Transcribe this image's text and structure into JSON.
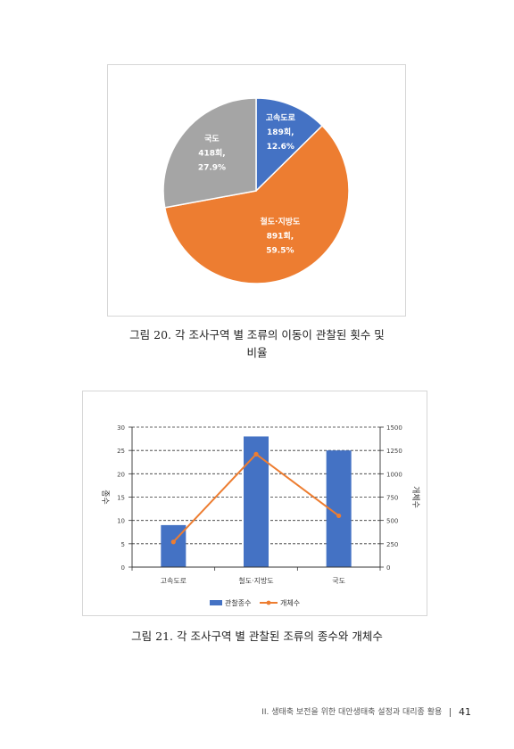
{
  "figure20": {
    "caption_line1": "그림 20. 각 조사구역 별 조류의 이동이 관찰된 횟수 및",
    "caption_line2": "비율"
  },
  "figure21": {
    "caption": "그림 21. 각 조사구역 별 관찰된 조류의 종수와 개체수"
  },
  "footer": {
    "text": "II. 생태축 보전을 위한 대안생태축 설정과 대리종 활용",
    "page": "41"
  },
  "chart_data": [
    {
      "type": "pie",
      "labels": [
        "고속도로",
        "철도·지방도",
        "국도"
      ],
      "values": [
        189,
        891,
        418
      ],
      "value_labels": [
        "189회,",
        "891회,",
        "418회,"
      ],
      "percent_labels": [
        "12.6%",
        "59.5%",
        "27.9%"
      ],
      "colors": [
        "#4472c4",
        "#ed7d31",
        "#a5a5a5"
      ]
    },
    {
      "type": "bar",
      "categories": [
        "고속도로",
        "철도·지방도",
        "국도"
      ],
      "series": [
        {
          "name": "관찰종수",
          "type": "bar",
          "axis": "left",
          "values": [
            9,
            28,
            25
          ],
          "color": "#4472c4"
        },
        {
          "name": "개체수",
          "type": "line",
          "axis": "right",
          "values": [
            270,
            1210,
            550
          ],
          "color": "#ed7d31"
        }
      ],
      "ylabel": "종수",
      "y2label": "개체수",
      "ylim": [
        0,
        30
      ],
      "y2lim": [
        0,
        1500
      ],
      "yticks": [
        "0",
        "5",
        "10",
        "15",
        "20",
        "25",
        "30"
      ],
      "y2ticks": [
        "0",
        "250",
        "500",
        "750",
        "1000",
        "1250",
        "1500"
      ],
      "grid": true,
      "legend": "bottom"
    }
  ]
}
